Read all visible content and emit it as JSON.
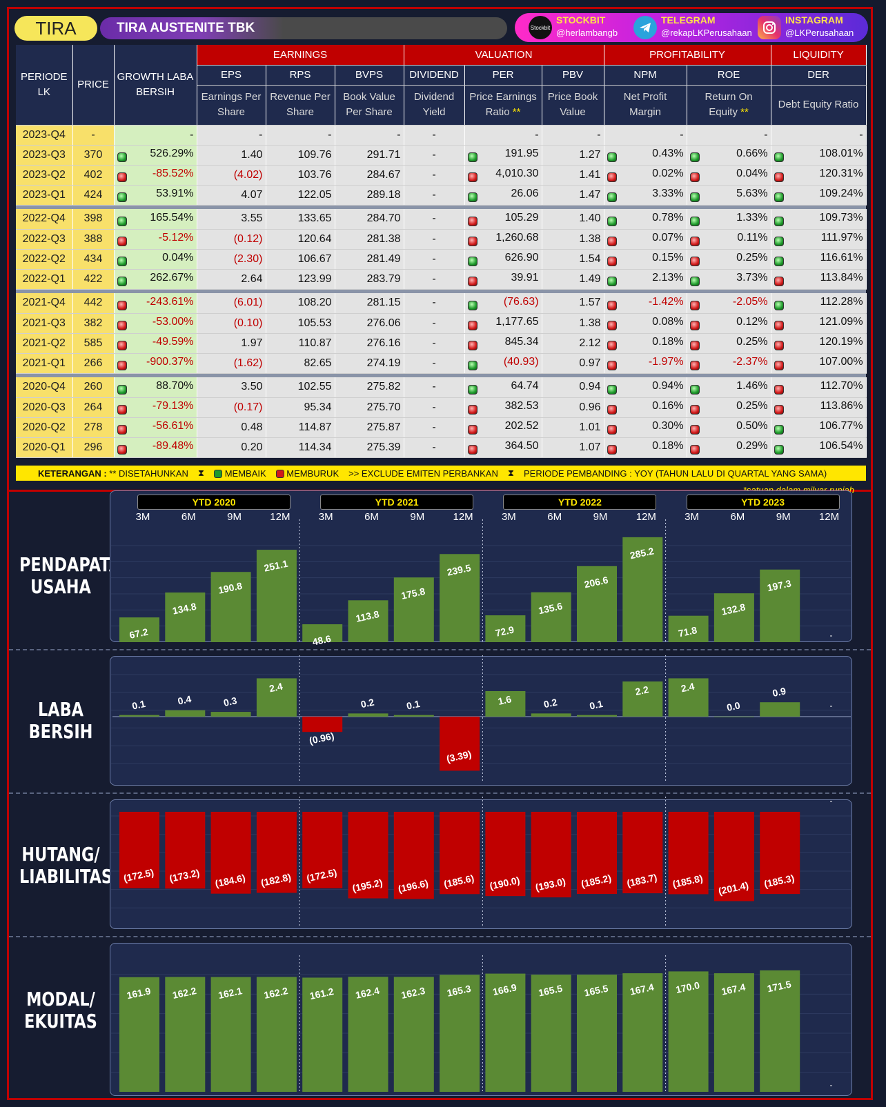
{
  "header": {
    "ticker": "TIRA",
    "company": "TIRA AUSTENITE TBK",
    "social": [
      {
        "icon": "stockbit-icon",
        "icon_text": "Stockbit",
        "title": "STOCKBIT",
        "handle": "@herlambangb"
      },
      {
        "icon": "telegram-icon",
        "icon_text": "",
        "title": "TELEGRAM",
        "handle": "@rekapLKPerusahaan"
      },
      {
        "icon": "instagram-icon",
        "icon_text": "",
        "title": "INSTAGRAM",
        "handle": "@LKPerusahaan"
      }
    ]
  },
  "table": {
    "groups": {
      "earnings": "EARNINGS",
      "valuation": "VALUATION",
      "profitability": "PROFITABILITY",
      "liquidity": "LIQUIDITY"
    },
    "left_headers": {
      "periode": "PERIODE LK",
      "price": "PRICE",
      "growth": "GROWTH LABA BERSIH"
    },
    "columns": [
      {
        "key": "EPS",
        "desc": "Earnings Per Share"
      },
      {
        "key": "RPS",
        "desc": "Revenue Per Share"
      },
      {
        "key": "BVPS",
        "desc": "Book Value Per Share"
      },
      {
        "key": "DIVIDEND",
        "desc": "Dividend Yield"
      },
      {
        "key": "PER",
        "desc": "Price Earnings Ratio",
        "star": "**"
      },
      {
        "key": "PBV",
        "desc": "Price Book Value"
      },
      {
        "key": "NPM",
        "desc": "Net Profit Margin"
      },
      {
        "key": "ROE",
        "desc": "Return On Equity",
        "star": "**"
      },
      {
        "key": "DER",
        "desc": "Debt Equity Ratio"
      }
    ],
    "rows": [
      {
        "p": "2023-Q4",
        "price": "-",
        "gs": "",
        "g": "-",
        "eps": "-",
        "rps": "-",
        "bvps": "-",
        "div": "-",
        "pers": "",
        "per": "-",
        "pbv": "-",
        "npms": "",
        "npm": "-",
        "roes": "",
        "roe": "-",
        "ders": "",
        "der": "-"
      },
      {
        "p": "2023-Q3",
        "price": "370",
        "gs": "g",
        "g": "526.29%",
        "eps": "1.40",
        "rps": "109.76",
        "bvps": "291.71",
        "div": "-",
        "pers": "g",
        "per": "191.95",
        "pbv": "1.27",
        "npms": "g",
        "npm": "0.43%",
        "roes": "g",
        "roe": "0.66%",
        "ders": "g",
        "der": "108.01%"
      },
      {
        "p": "2023-Q2",
        "price": "402",
        "gs": "r",
        "g": "-85.52%",
        "eps": "(4.02)",
        "rps": "103.76",
        "bvps": "284.67",
        "div": "-",
        "pers": "r",
        "per": "4,010.30",
        "pbv": "1.41",
        "npms": "r",
        "npm": "0.02%",
        "roes": "r",
        "roe": "0.04%",
        "ders": "r",
        "der": "120.31%"
      },
      {
        "p": "2023-Q1",
        "price": "424",
        "gs": "g",
        "g": "53.91%",
        "eps": "4.07",
        "rps": "122.05",
        "bvps": "289.18",
        "div": "-",
        "pers": "g",
        "per": "26.06",
        "pbv": "1.47",
        "npms": "g",
        "npm": "3.33%",
        "roes": "g",
        "roe": "5.63%",
        "ders": "g",
        "der": "109.24%",
        "sep": true
      },
      {
        "p": "2022-Q4",
        "price": "398",
        "gs": "g",
        "g": "165.54%",
        "eps": "3.55",
        "rps": "133.65",
        "bvps": "284.70",
        "div": "-",
        "pers": "r",
        "per": "105.29",
        "pbv": "1.40",
        "npms": "g",
        "npm": "0.78%",
        "roes": "g",
        "roe": "1.33%",
        "ders": "g",
        "der": "109.73%"
      },
      {
        "p": "2022-Q3",
        "price": "388",
        "gs": "r",
        "g": "-5.12%",
        "eps": "(0.12)",
        "rps": "120.64",
        "bvps": "281.38",
        "div": "-",
        "pers": "r",
        "per": "1,260.68",
        "pbv": "1.38",
        "npms": "r",
        "npm": "0.07%",
        "roes": "r",
        "roe": "0.11%",
        "ders": "g",
        "der": "111.97%"
      },
      {
        "p": "2022-Q2",
        "price": "434",
        "gs": "g",
        "g": "0.04%",
        "eps": "(2.30)",
        "rps": "106.67",
        "bvps": "281.49",
        "div": "-",
        "pers": "g",
        "per": "626.90",
        "pbv": "1.54",
        "npms": "r",
        "npm": "0.15%",
        "roes": "r",
        "roe": "0.25%",
        "ders": "g",
        "der": "116.61%"
      },
      {
        "p": "2022-Q1",
        "price": "422",
        "gs": "g",
        "g": "262.67%",
        "eps": "2.64",
        "rps": "123.99",
        "bvps": "283.79",
        "div": "-",
        "pers": "r",
        "per": "39.91",
        "pbv": "1.49",
        "npms": "g",
        "npm": "2.13%",
        "roes": "g",
        "roe": "3.73%",
        "ders": "r",
        "der": "113.84%",
        "sep": true
      },
      {
        "p": "2021-Q4",
        "price": "442",
        "gs": "r",
        "g": "-243.61%",
        "eps": "(6.01)",
        "rps": "108.20",
        "bvps": "281.15",
        "div": "-",
        "pers": "g",
        "per": "(76.63)",
        "pbv": "1.57",
        "npms": "r",
        "npm": "-1.42%",
        "roes": "r",
        "roe": "-2.05%",
        "ders": "g",
        "der": "112.28%"
      },
      {
        "p": "2021-Q3",
        "price": "382",
        "gs": "r",
        "g": "-53.00%",
        "eps": "(0.10)",
        "rps": "105.53",
        "bvps": "276.06",
        "div": "-",
        "pers": "r",
        "per": "1,177.65",
        "pbv": "1.38",
        "npms": "r",
        "npm": "0.08%",
        "roes": "r",
        "roe": "0.12%",
        "ders": "r",
        "der": "121.09%"
      },
      {
        "p": "2021-Q2",
        "price": "585",
        "gs": "r",
        "g": "-49.59%",
        "eps": "1.97",
        "rps": "110.87",
        "bvps": "276.16",
        "div": "-",
        "pers": "r",
        "per": "845.34",
        "pbv": "2.12",
        "npms": "r",
        "npm": "0.18%",
        "roes": "r",
        "roe": "0.25%",
        "ders": "r",
        "der": "120.19%"
      },
      {
        "p": "2021-Q1",
        "price": "266",
        "gs": "r",
        "g": "-900.37%",
        "eps": "(1.62)",
        "rps": "82.65",
        "bvps": "274.19",
        "div": "-",
        "pers": "g",
        "per": "(40.93)",
        "pbv": "0.97",
        "npms": "r",
        "npm": "-1.97%",
        "roes": "r",
        "roe": "-2.37%",
        "ders": "r",
        "der": "107.00%",
        "sep": true
      },
      {
        "p": "2020-Q4",
        "price": "260",
        "gs": "g",
        "g": "88.70%",
        "eps": "3.50",
        "rps": "102.55",
        "bvps": "275.82",
        "div": "-",
        "pers": "g",
        "per": "64.74",
        "pbv": "0.94",
        "npms": "g",
        "npm": "0.94%",
        "roes": "g",
        "roe": "1.46%",
        "ders": "r",
        "der": "112.70%"
      },
      {
        "p": "2020-Q3",
        "price": "264",
        "gs": "r",
        "g": "-79.13%",
        "eps": "(0.17)",
        "rps": "95.34",
        "bvps": "275.70",
        "div": "-",
        "pers": "r",
        "per": "382.53",
        "pbv": "0.96",
        "npms": "r",
        "npm": "0.16%",
        "roes": "r",
        "roe": "0.25%",
        "ders": "r",
        "der": "113.86%"
      },
      {
        "p": "2020-Q2",
        "price": "278",
        "gs": "r",
        "g": "-56.61%",
        "eps": "0.48",
        "rps": "114.87",
        "bvps": "275.87",
        "div": "-",
        "pers": "r",
        "per": "202.52",
        "pbv": "1.01",
        "npms": "r",
        "npm": "0.30%",
        "roes": "r",
        "roe": "0.50%",
        "ders": "g",
        "der": "106.77%"
      },
      {
        "p": "2020-Q1",
        "price": "296",
        "gs": "r",
        "g": "-89.48%",
        "eps": "0.20",
        "rps": "114.34",
        "bvps": "275.39",
        "div": "-",
        "pers": "r",
        "per": "364.50",
        "pbv": "1.07",
        "npms": "r",
        "npm": "0.18%",
        "roes": "r",
        "roe": "0.29%",
        "ders": "g",
        "der": "106.54%"
      }
    ]
  },
  "legend": {
    "keterangan": "KETERANGAN :",
    "star_text": "** DISETAHUNKAN",
    "membaik": "MEMBAIK",
    "memburuk": "MEMBURUK",
    "exclude": ">> EXCLUDE EMITEN PERBANKAN",
    "pembanding": "PERIODE PEMBANDING : YOY (TAHUN LALU DI QUARTAL YANG SAMA)"
  },
  "colors": {
    "positive": "#5b8a34",
    "negative": "#c00000",
    "accent": "#ffe600",
    "header_red": "#c00000",
    "navy": "#1f2a4d"
  },
  "chart_data": [
    {
      "type": "bar",
      "title": "PENDAPATAN USAHA",
      "note": "*satuan dalam milyar rupiah",
      "groups": [
        "YTD 2020",
        "YTD 2021",
        "YTD 2022",
        "YTD 2023"
      ],
      "categories": [
        "3M",
        "6M",
        "9M",
        "12M"
      ],
      "values": [
        67.2,
        134.8,
        190.8,
        251.1,
        48.6,
        113.8,
        175.8,
        239.5,
        72.9,
        135.6,
        206.6,
        285.2,
        71.8,
        132.8,
        197.3,
        null
      ],
      "labels": [
        "67.2",
        "134.8",
        "190.8",
        "251.1",
        "48.6",
        "113.8",
        "175.8",
        "239.5",
        "72.9",
        "135.6",
        "206.6",
        "285.2",
        "71.8",
        "132.8",
        "197.3",
        "-"
      ],
      "ylim": [
        0,
        300
      ]
    },
    {
      "type": "bar",
      "title": "LABA BERSIH",
      "values": [
        0.1,
        0.4,
        0.3,
        2.4,
        -0.96,
        0.2,
        0.1,
        -3.39,
        1.6,
        0.2,
        0.1,
        2.2,
        2.4,
        0.0,
        0.9,
        null
      ],
      "labels": [
        "0.1",
        "0.4",
        "0.3",
        "2.4",
        "(0.96)",
        "0.2",
        "0.1",
        "(3.39)",
        "1.6",
        "0.2",
        "0.1",
        "2.2",
        "2.4",
        "0.0",
        "0.9",
        "-"
      ],
      "ylim": [
        -4,
        3.5
      ]
    },
    {
      "type": "bar",
      "title": "HUTANG/ LIABILITAS",
      "values": [
        -172.5,
        -173.2,
        -184.6,
        -182.8,
        -172.5,
        -195.2,
        -196.6,
        -185.6,
        -190.0,
        -193.0,
        -185.2,
        -183.7,
        -185.8,
        -201.4,
        -185.3,
        null
      ],
      "labels": [
        "(172.5)",
        "(173.2)",
        "(184.6)",
        "(182.8)",
        "(172.5)",
        "(195.2)",
        "(196.6)",
        "(185.6)",
        "(190.0)",
        "(193.0)",
        "(185.2)",
        "(183.7)",
        "(185.8)",
        "(201.4)",
        "(185.3)",
        "-"
      ],
      "ylim": [
        -280,
        0
      ]
    },
    {
      "type": "bar",
      "title": "MODAL/ EKUITAS",
      "values": [
        161.9,
        162.2,
        162.1,
        162.2,
        161.2,
        162.4,
        162.3,
        165.3,
        166.9,
        165.5,
        165.5,
        167.4,
        170.0,
        167.4,
        171.5,
        null
      ],
      "labels": [
        "161.9",
        "162.2",
        "162.1",
        "162.2",
        "161.2",
        "162.4",
        "162.3",
        "165.3",
        "166.9",
        "165.5",
        "165.5",
        "167.4",
        "170.0",
        "167.4",
        "171.5",
        "-"
      ],
      "ylim": [
        0,
        185
      ]
    }
  ]
}
